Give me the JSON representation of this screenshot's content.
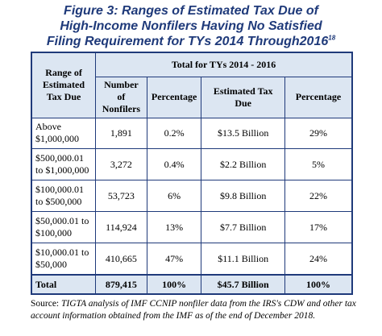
{
  "title": {
    "line1": "Figure 3:  Ranges of Estimated Tax Due of",
    "line2": "High-Income Nonfilers Having No Satisfied",
    "line3": "Filing Requirement for TYs 2014 Through2016",
    "footnote_marker": "18"
  },
  "table": {
    "header": {
      "range": "Range of Estimated Tax Due",
      "group": "Total for TYs 2014 - 2016",
      "columns": [
        "Number of Nonfilers",
        "Percentage",
        "Estimated Tax Due",
        "Percentage"
      ]
    },
    "rows": [
      {
        "range": "Above $1,000,000",
        "nonfilers": "1,891",
        "pct1": "0.2%",
        "tax_due": "$13.5 Billion",
        "pct2": "29%"
      },
      {
        "range": "$500,000.01 to $1,000,000",
        "nonfilers": "3,272",
        "pct1": "0.4%",
        "tax_due": "$2.2 Billion",
        "pct2": "5%"
      },
      {
        "range": "$100,000.01 to $500,000",
        "nonfilers": "53,723",
        "pct1": "6%",
        "tax_due": "$9.8 Billion",
        "pct2": "22%"
      },
      {
        "range": "$50,000.01 to $100,000",
        "nonfilers": "114,924",
        "pct1": "13%",
        "tax_due": "$7.7 Billion",
        "pct2": "17%"
      },
      {
        "range": "$10,000.01 to $50,000",
        "nonfilers": "410,665",
        "pct1": "47%",
        "tax_due": "$11.1 Billion",
        "pct2": "24%"
      }
    ],
    "total": {
      "range": "Total",
      "nonfilers": "879,415",
      "pct1": "100%",
      "tax_due": "$45.7 Billion",
      "pct2": "100%"
    }
  },
  "source": {
    "label": "Source:",
    "text": "TIGTA analysis of IMF CCNIP nonfiler data from the IRS's CDW and other tax account information obtained from the IMF as of the end of December 2018."
  },
  "colors": {
    "title": "#1f3a7a",
    "border": "#1f3a7a",
    "header_fill": "#dce6f2"
  }
}
